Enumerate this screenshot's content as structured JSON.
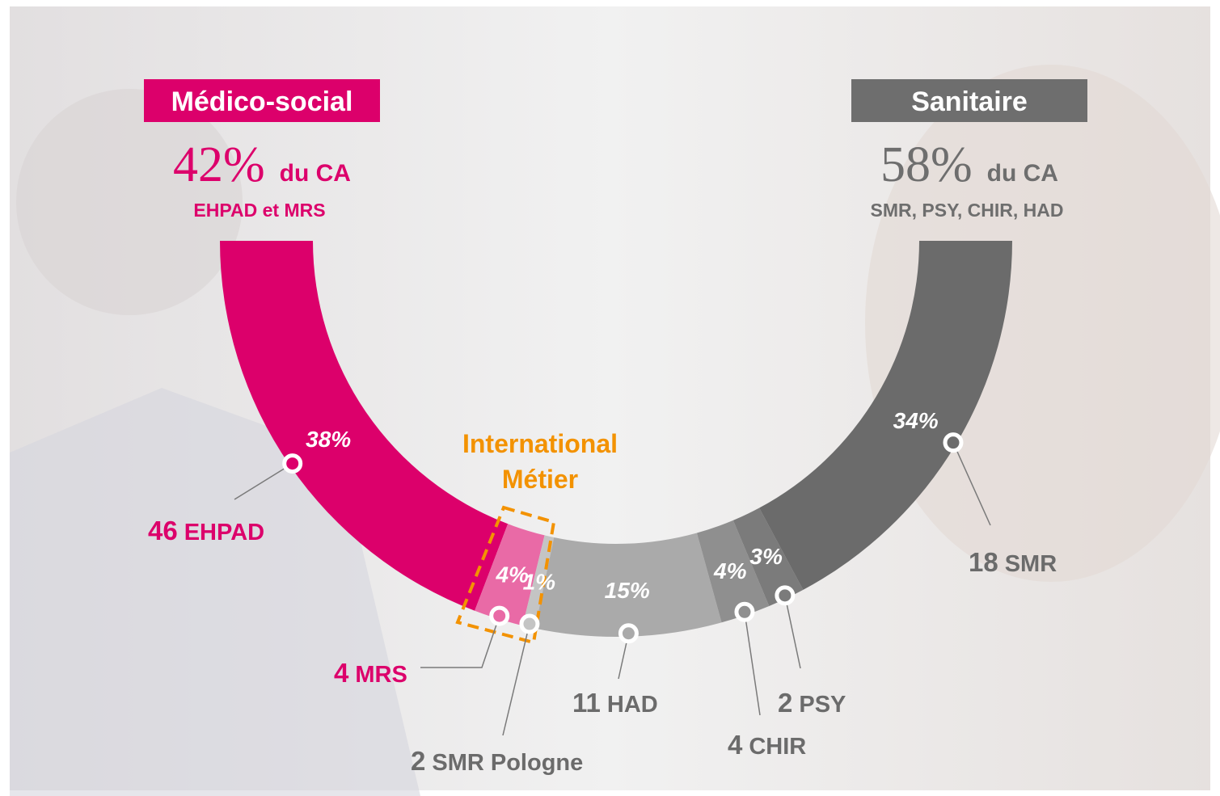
{
  "chart_data": {
    "type": "semi-donut",
    "values": [
      38,
      4,
      1,
      15,
      4,
      3,
      34
    ],
    "value_labels": [
      "38%",
      "4%",
      "1%",
      "15%",
      "4%",
      "3%",
      "34%"
    ],
    "colors": [
      "#dc006b",
      "#e96aa6",
      "#c4c4c4",
      "#aaaaaa",
      "#8f8f8f",
      "#7b7b7b",
      "#6b6b6b"
    ],
    "counts": [
      46,
      4,
      2,
      11,
      4,
      2,
      18
    ],
    "categories": [
      "EHPAD",
      "MRS",
      "SMR Pologne",
      "HAD",
      "CHIR",
      "PSY",
      "SMR"
    ],
    "label_colors": [
      "#dc006b",
      "#dc006b",
      "#6b6b6b",
      "#6b6b6b",
      "#6b6b6b",
      "#6b6b6b",
      "#6b6b6b"
    ],
    "groups": [
      {
        "name": "Médico-social",
        "share": "42%",
        "suffix": "du CA",
        "detail": "EHPAD et MRS",
        "color": "#dc006b"
      },
      {
        "name": "Sanitaire",
        "share": "58%",
        "suffix": "du CA",
        "detail": "SMR, PSY, CHIR, HAD",
        "color": "#6e6e6e"
      }
    ],
    "annotation": {
      "lines": [
        "International",
        "Métier"
      ],
      "color": "#f39200"
    }
  }
}
